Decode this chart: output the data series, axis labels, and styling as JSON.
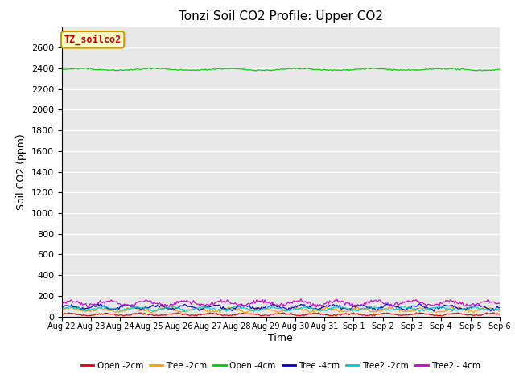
{
  "title": "Tonzi Soil CO2 Profile: Upper CO2",
  "xlabel": "Time",
  "ylabel": "Soil CO2 (ppm)",
  "ylim": [
    0,
    2800
  ],
  "yticks": [
    0,
    200,
    400,
    600,
    800,
    1000,
    1200,
    1400,
    1600,
    1800,
    2000,
    2200,
    2400,
    2600
  ],
  "bg_color": "#e8e8e8",
  "legend_label": "TZ_soilco2",
  "legend_text_color": "#cc0000",
  "legend_box_facecolor": "#ffffcc",
  "legend_box_edgecolor": "#cc9900",
  "n_points": 400,
  "xtick_labels": [
    "Aug 22",
    "Aug 23",
    "Aug 24",
    "Aug 25",
    "Aug 26",
    "Aug 27",
    "Aug 28",
    "Aug 29",
    "Aug 30",
    "Aug 31",
    "Sep 1",
    "Sep 2",
    "Sep 3",
    "Sep 4",
    "Sep 5",
    "Sep 6"
  ],
  "series": [
    {
      "name": "Open -2cm",
      "color": "#dd0000",
      "base": 20,
      "amp": 10,
      "period": 1.2
    },
    {
      "name": "Tree -2cm",
      "color": "#ff9900",
      "base": 65,
      "amp": 18,
      "period": 1.1
    },
    {
      "name": "Open -4cm",
      "color": "#00cc00",
      "base": 2390,
      "amp": 8,
      "period": 2.5
    },
    {
      "name": "Tree -4cm",
      "color": "#0000cc",
      "base": 90,
      "amp": 18,
      "period": 1.0
    },
    {
      "name": "Tree2 -2cm",
      "color": "#00cccc",
      "base": 75,
      "amp": 15,
      "period": 1.15
    },
    {
      "name": "Tree2 - 4cm",
      "color": "#cc00cc",
      "base": 130,
      "amp": 22,
      "period": 1.3
    }
  ]
}
